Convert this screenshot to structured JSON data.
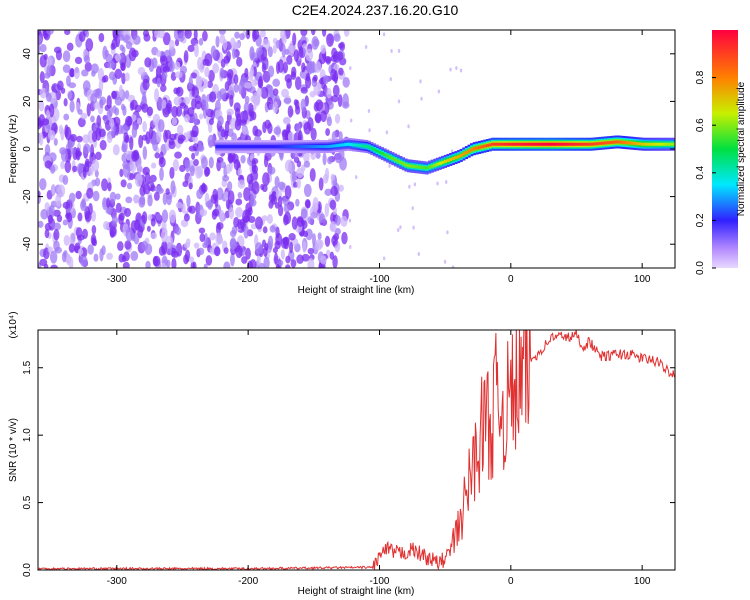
{
  "title": "C2E4.2024.237.16.20.G10",
  "colors": {
    "series": "#e03030",
    "axis": "#000000",
    "dots": "#7a2cf0"
  },
  "chart_data": [
    {
      "type": "heatmap",
      "xlabel": "Height of straight line (km)",
      "ylabel": "Frequency (Hz)",
      "xlim": [
        -360,
        125
      ],
      "ylim": [
        -50,
        50
      ],
      "xticks": [
        -300,
        -200,
        -100,
        0,
        100
      ],
      "yticks": [
        -40,
        -20,
        0,
        20,
        40
      ],
      "grid": false,
      "colorbar": {
        "label": "Normalized spectral amplitude",
        "range": [
          0.0,
          1.0
        ],
        "ticks": [
          "0.0",
          "0.2",
          "0.4",
          "0.6",
          "0.8"
        ],
        "colormap": "rainbow"
      },
      "noise_region": {
        "x_from": -360,
        "x_to": -125,
        "level": 0.15
      },
      "ridge": {
        "x": [
          -225,
          -180,
          -140,
          -125,
          -110,
          -95,
          -80,
          -65,
          -50,
          -40,
          -30,
          -15,
          0,
          30,
          60,
          80,
          100,
          125
        ],
        "y": [
          1,
          1,
          1,
          2,
          1,
          -3,
          -7,
          -8,
          -5,
          -3,
          0,
          2,
          2,
          2,
          2,
          3,
          2,
          2
        ],
        "level": [
          0.2,
          0.2,
          0.3,
          0.35,
          0.45,
          0.55,
          0.6,
          0.55,
          0.7,
          0.75,
          0.8,
          0.9,
          0.95,
          1.0,
          0.9,
          0.85,
          0.7,
          0.6
        ]
      }
    },
    {
      "type": "line",
      "xlabel": "Height of straight line (km)",
      "ylabel": "SNR (10 * v/v)",
      "yscale_label": "(x10⁴)",
      "xlim": [
        -360,
        125
      ],
      "ylim": [
        0,
        1.78
      ],
      "xticks": [
        -300,
        -200,
        -100,
        0,
        100
      ],
      "yticks": [
        "0.0",
        "0.5",
        "1.0",
        "1.5"
      ],
      "grid": false,
      "x": [
        -360,
        -200,
        -105,
        -100,
        -95,
        -85,
        -75,
        -65,
        -55,
        -48,
        -40,
        -35,
        -30,
        -25,
        -20,
        -15,
        -10,
        -5,
        0,
        5,
        10,
        15,
        20,
        25,
        30,
        35,
        40,
        45,
        50,
        55,
        60,
        65,
        70,
        80,
        90,
        100,
        110,
        120,
        125
      ],
      "y": [
        0.01,
        0.01,
        0.02,
        0.1,
        0.15,
        0.12,
        0.15,
        0.1,
        0.05,
        0.1,
        0.3,
        0.5,
        0.75,
        0.9,
        1.15,
        1.05,
        1.35,
        1.15,
        1.3,
        1.35,
        1.45,
        1.55,
        1.6,
        1.65,
        1.72,
        1.73,
        1.74,
        1.72,
        1.75,
        1.65,
        1.7,
        1.62,
        1.58,
        1.6,
        1.6,
        1.57,
        1.55,
        1.48,
        1.45
      ]
    }
  ]
}
